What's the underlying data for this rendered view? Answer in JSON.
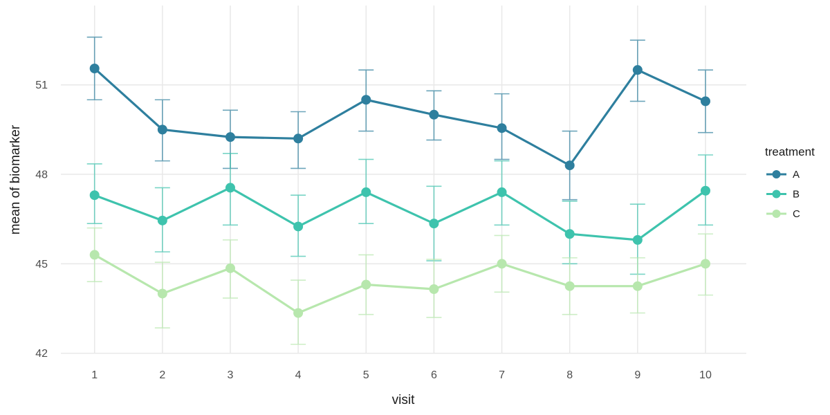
{
  "figure": {
    "xlabel": "visit",
    "ylabel": "mean of biomarker",
    "legend_title": "treatment",
    "colors": {
      "background": "#ffffff",
      "grid": "#e8e8e8",
      "tick_label": "#4d4d4d",
      "axis_title": "#1a1a1a",
      "legend_text": "#1a1a1a"
    }
  },
  "chart_data": {
    "type": "line",
    "title": "",
    "xlabel": "visit",
    "ylabel": "mean of biomarker",
    "x": [
      1,
      2,
      3,
      4,
      5,
      6,
      7,
      8,
      9,
      10
    ],
    "xticks": [
      "1",
      "2",
      "3",
      "4",
      "5",
      "6",
      "7",
      "8",
      "9",
      "10"
    ],
    "yticks": [
      42,
      45,
      48,
      51
    ],
    "ylim": [
      42,
      53.6
    ],
    "grid": "major-only",
    "error_bars": true,
    "legend": {
      "title": "treatment",
      "position": "right",
      "entries": [
        "A",
        "B",
        "C"
      ]
    },
    "series": [
      {
        "name": "A",
        "color": "#2e7f9e",
        "values": [
          51.55,
          49.5,
          49.25,
          49.2,
          50.5,
          50.0,
          49.55,
          48.3,
          51.5,
          50.45
        ],
        "ymin": [
          50.5,
          48.45,
          48.2,
          48.2,
          49.45,
          49.15,
          48.5,
          47.15,
          50.45,
          49.4
        ],
        "ymax": [
          52.6,
          50.5,
          50.15,
          50.1,
          51.5,
          50.8,
          50.7,
          49.45,
          52.5,
          51.5
        ]
      },
      {
        "name": "B",
        "color": "#3ec3ad",
        "values": [
          47.3,
          46.45,
          47.55,
          46.25,
          47.4,
          46.35,
          47.4,
          46.0,
          45.8,
          47.45
        ],
        "ymin": [
          46.35,
          45.4,
          46.3,
          45.25,
          46.35,
          45.1,
          46.3,
          45.0,
          44.65,
          46.3
        ],
        "ymax": [
          48.35,
          47.55,
          48.7,
          47.3,
          48.5,
          47.6,
          48.45,
          47.1,
          47.0,
          48.65
        ]
      },
      {
        "name": "C",
        "color": "#b7e7ad",
        "values": [
          45.3,
          44.0,
          44.85,
          43.35,
          44.3,
          44.15,
          45.0,
          44.25,
          44.25,
          45.0
        ],
        "ymin": [
          44.4,
          42.85,
          43.85,
          42.3,
          43.3,
          43.2,
          44.05,
          43.3,
          43.35,
          43.95
        ],
        "ymax": [
          46.2,
          45.05,
          45.8,
          44.45,
          45.3,
          45.15,
          45.95,
          45.2,
          45.2,
          46.0
        ]
      }
    ]
  }
}
